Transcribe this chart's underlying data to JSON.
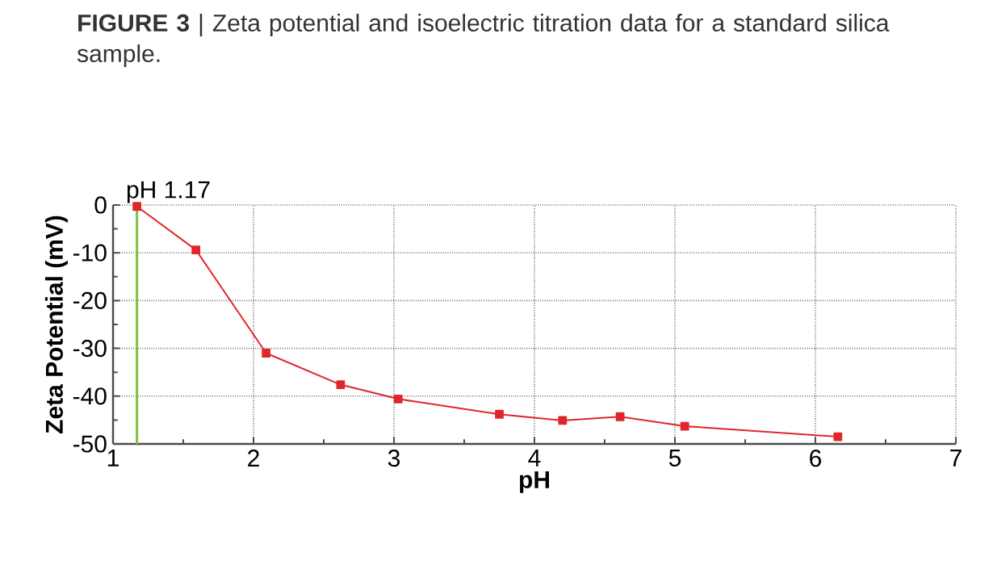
{
  "chart_data": {
    "type": "line",
    "title": "**FIGURE 3** | Zeta potential and isoelectric titration data for a standard silica sample.",
    "xlabel": "pH",
    "ylabel": "Zeta Potential (mV)",
    "x": [
      1.17,
      1.59,
      2.09,
      2.62,
      3.03,
      3.75,
      4.2,
      4.61,
      5.07,
      6.16
    ],
    "series": [
      {
        "color": "#e0262b",
        "values": [
          -0.3,
          -9.4,
          -31,
          -37.6,
          -40.6,
          -43.8,
          -45.1,
          -44.3,
          -46.3,
          -48.5
        ]
      }
    ],
    "xlim": [
      1,
      7
    ],
    "xticks": [
      1,
      2,
      3,
      4,
      5,
      6,
      7
    ],
    "ylim": [
      -50,
      0
    ],
    "yticks": [
      -50,
      -40,
      -30,
      -20,
      -10,
      0
    ],
    "grid": true,
    "marker": "square",
    "line_style": "solid",
    "ref_lines": [
      {
        "axis": "x",
        "value": 1.17,
        "label": "pH 1.17",
        "color": "#7cc242"
      }
    ]
  }
}
